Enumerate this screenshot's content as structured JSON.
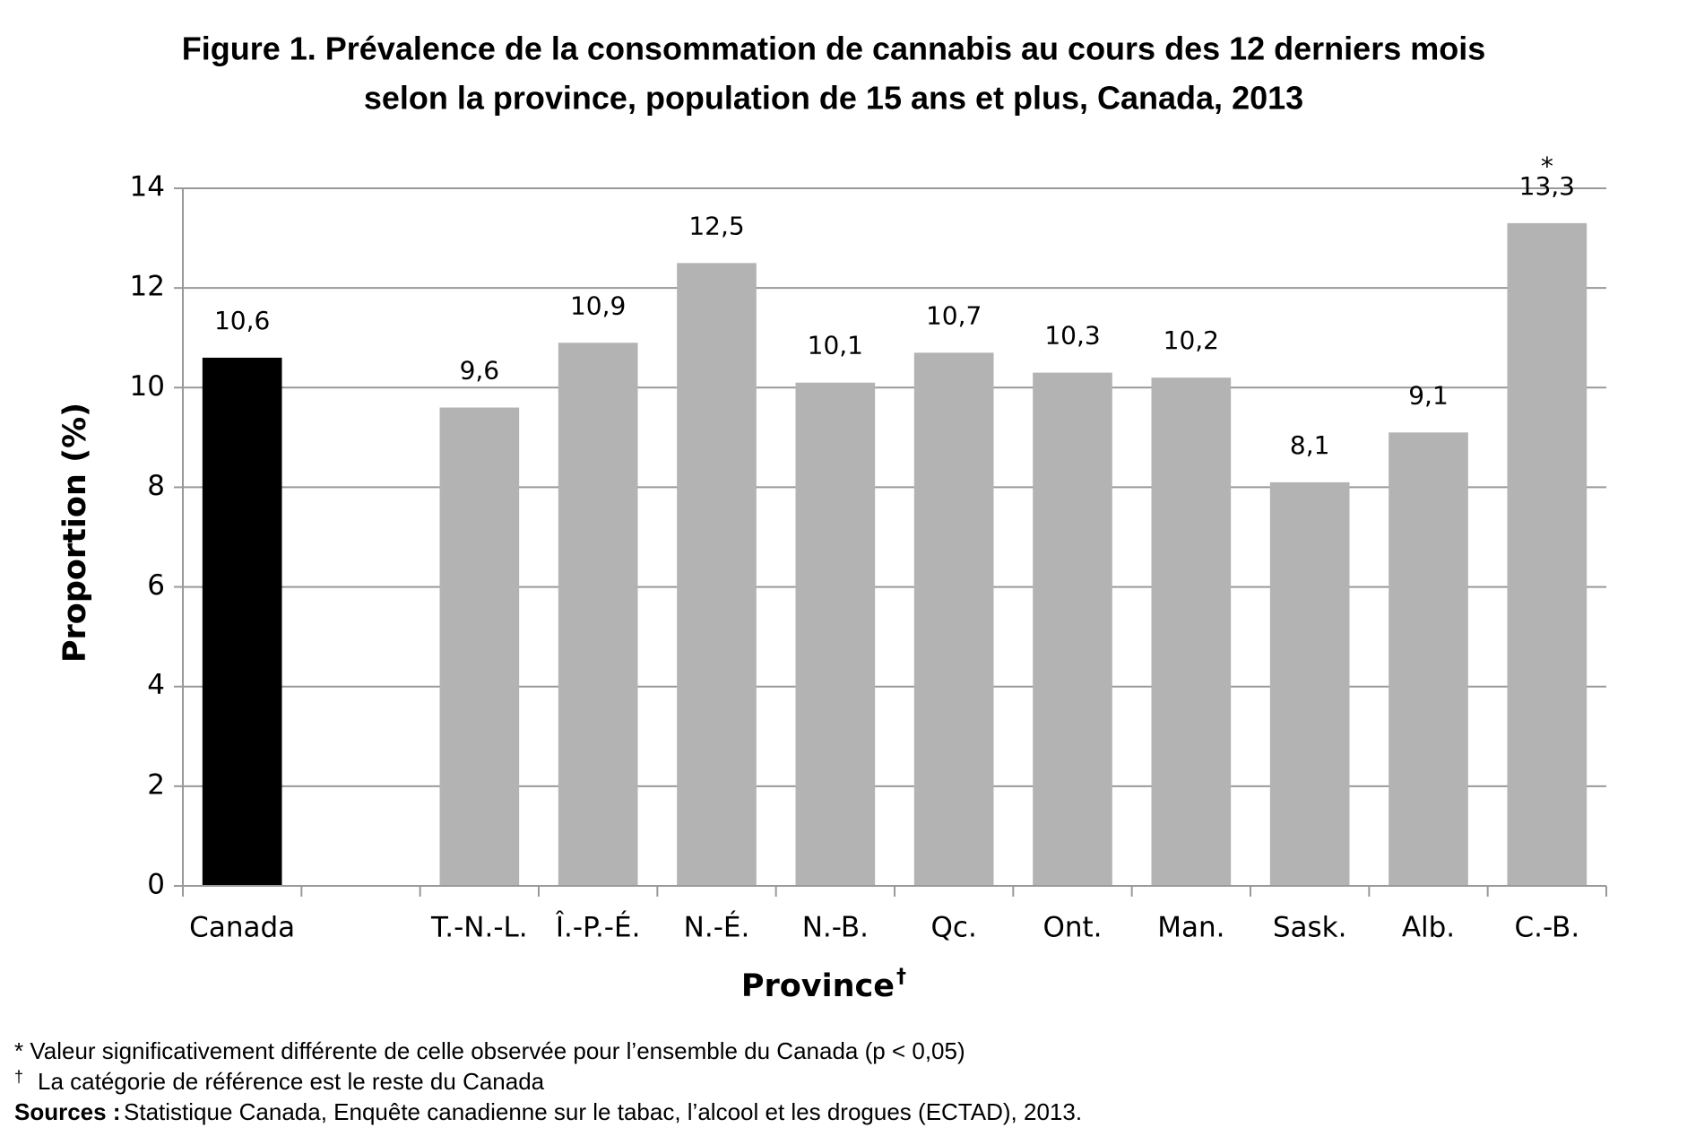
{
  "chart_data": {
    "type": "bar",
    "title_lines": [
      "Figure 1. Prévalence de la consommation de cannabis au cours des 12 derniers mois",
      "selon la province, population de 15 ans et plus, Canada, 2013"
    ],
    "y_label": "Proportion (%)",
    "x_label": "Province",
    "x_label_superscript": "†",
    "categories": [
      "Canada",
      null,
      "T.-N.-L.",
      "Î.-P.-É.",
      "N.-É.",
      "N.-B.",
      "Qc.",
      "Ont.",
      "Man.",
      "Sask.",
      "Alb.",
      "C.-B."
    ],
    "values": [
      10.6,
      null,
      9.6,
      10.9,
      12.5,
      10.1,
      10.7,
      10.3,
      10.2,
      8.1,
      9.1,
      13.3
    ],
    "value_labels": [
      "10,6",
      null,
      "9,6",
      "10,9",
      "12,5",
      "10,1",
      "10,7",
      "10,3",
      "10,2",
      "8,1",
      "9,1",
      "13,3"
    ],
    "significance_markers": [
      null,
      null,
      null,
      null,
      null,
      null,
      null,
      null,
      null,
      null,
      null,
      "*"
    ],
    "colors": [
      "#000000",
      null,
      "#b3b3b3",
      "#b3b3b3",
      "#b3b3b3",
      "#b3b3b3",
      "#b3b3b3",
      "#b3b3b3",
      "#b3b3b3",
      "#b3b3b3",
      "#b3b3b3",
      "#b3b3b3"
    ],
    "ylim": [
      0,
      14
    ],
    "yticks": [
      0,
      2,
      4,
      6,
      8,
      10,
      12,
      14
    ],
    "grid": true
  },
  "footnotes": {
    "significance": "* Valeur significativement différente de celle observée pour l’ensemble du Canada (p < 0,05)",
    "reference_symbol": "†",
    "reference": "La catégorie de référence est le reste du Canada",
    "sources_label": "Sources :",
    "sources": "Statistique Canada, Enquête canadienne sur le tabac, l’alcool et les drogues (ECTAD), 2013."
  }
}
